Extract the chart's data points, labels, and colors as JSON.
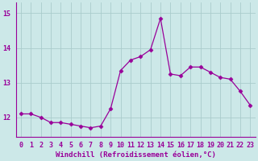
{
  "x": [
    0,
    1,
    2,
    3,
    4,
    5,
    6,
    7,
    8,
    9,
    10,
    11,
    12,
    13,
    14,
    15,
    16,
    17,
    18,
    19,
    20,
    21,
    22,
    23
  ],
  "y": [
    12.1,
    12.1,
    12.0,
    11.85,
    11.85,
    11.8,
    11.75,
    11.7,
    11.75,
    12.25,
    13.35,
    13.65,
    13.75,
    13.95,
    14.85,
    13.25,
    13.2,
    13.45,
    13.45,
    13.3,
    13.15,
    13.1,
    12.75,
    12.35
  ],
  "line_color": "#990099",
  "marker": "D",
  "marker_size": 2.5,
  "bg_color": "#cce8e8",
  "grid_color": "#aacccc",
  "xlabel": "Windchill (Refroidissement éolien,°C)",
  "ylim_min": 11.45,
  "ylim_max": 15.3,
  "xlim_min": -0.5,
  "xlim_max": 23.5,
  "yticks": [
    12,
    13,
    14,
    15
  ],
  "xticks": [
    0,
    1,
    2,
    3,
    4,
    5,
    6,
    7,
    8,
    9,
    10,
    11,
    12,
    13,
    14,
    15,
    16,
    17,
    18,
    19,
    20,
    21,
    22,
    23
  ],
  "tick_color": "#990099",
  "label_fontsize": 6.5,
  "tick_fontsize": 6.0
}
